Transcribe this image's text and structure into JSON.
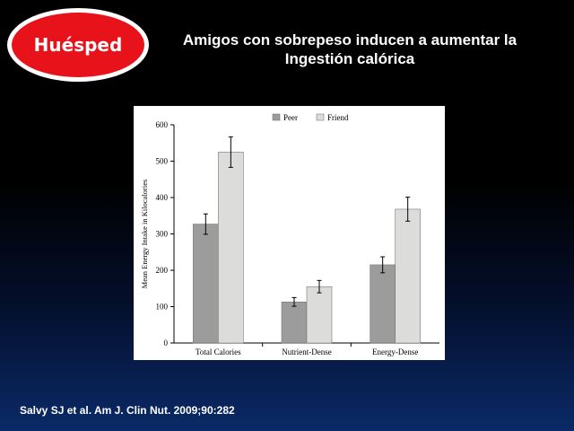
{
  "slide": {
    "badge": "Huésped",
    "title_line1": "Amigos con sobrepeso inducen a aumentar la",
    "title_line2": "Ingestión calórica",
    "citation": "Salvy SJ et al. Am J. Clin Nut. 2009;90:282"
  },
  "colors": {
    "peer": "#9c9c9c",
    "friend": "#dcdcda",
    "badge_red": "#e8121b"
  },
  "chart_data": {
    "type": "bar",
    "categories": [
      "Total Calories",
      "Nutrient-Dense",
      "Energy-Dense"
    ],
    "series": [
      {
        "name": "Peer",
        "values": [
          327,
          113,
          215
        ],
        "error": [
          28,
          12,
          22
        ]
      },
      {
        "name": "Friend",
        "values": [
          525,
          155,
          368
        ],
        "error": [
          42,
          17,
          33
        ]
      }
    ],
    "title": "",
    "xlabel": "",
    "ylabel": "Mean Energy Intake in Kilocalories",
    "ylim": [
      0,
      600
    ],
    "yticks": [
      0,
      100,
      200,
      300,
      400,
      500,
      600
    ],
    "legend": "top-center",
    "grid": false
  }
}
